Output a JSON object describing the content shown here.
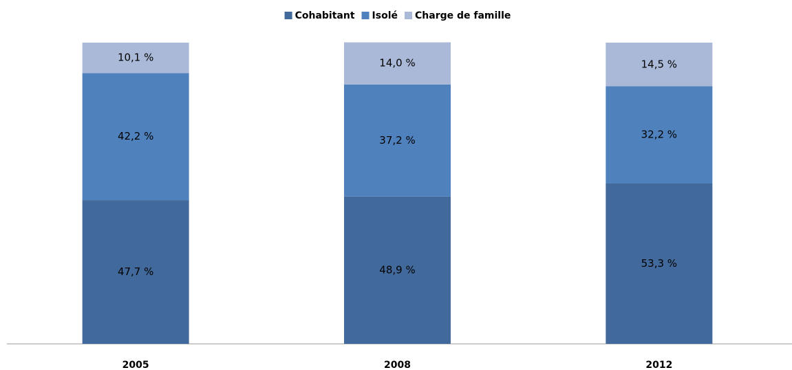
{
  "chart_data": {
    "type": "stacked-bar",
    "categories": [
      "2005",
      "2008",
      "2012"
    ],
    "series": [
      {
        "name": "Cohabitant",
        "color": "#41699b",
        "values": [
          47.7,
          48.9,
          53.3
        ],
        "value_labels": [
          "47,7 %",
          "48,9 %",
          "53,3 %"
        ]
      },
      {
        "name": "Isolé",
        "color": "#4f81bd",
        "values": [
          42.2,
          37.2,
          32.2
        ],
        "value_labels": [
          "42,2 %",
          "37,2 %",
          "32,2 %"
        ]
      },
      {
        "name": "Charge de famille",
        "color": "#aab9d7",
        "values": [
          10.1,
          14.0,
          14.5
        ],
        "value_labels": [
          "10,1 %",
          "14,0 %",
          "14,5 %"
        ]
      }
    ],
    "legend": "top"
  }
}
